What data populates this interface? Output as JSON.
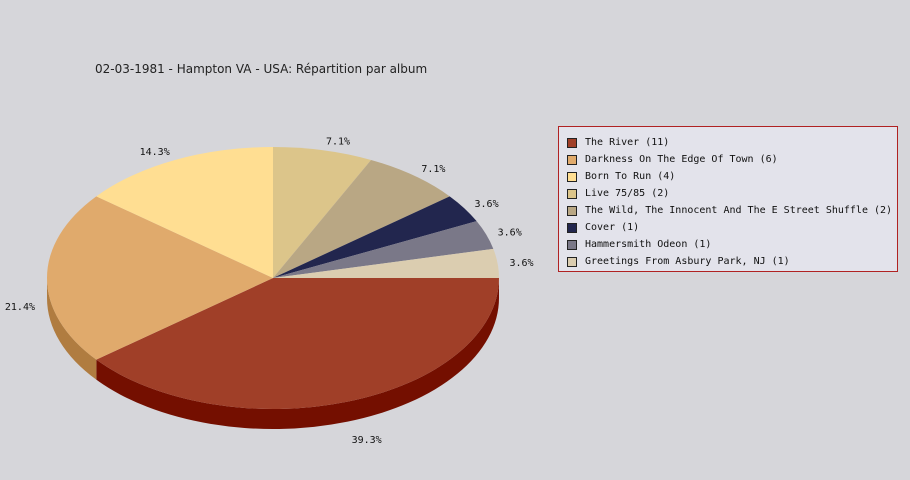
{
  "chart_data": {
    "type": "pie",
    "title": "02-03-1981 - Hampton VA - USA:  Répartition par album",
    "legend_position": "right",
    "slices": [
      {
        "label": "The River",
        "count": 11,
        "legend": "The River (11)",
        "percent_label": "39.3%",
        "color": "#a03f28",
        "side_color": "#740f00"
      },
      {
        "label": "Darkness On The Edge Of Town",
        "count": 6,
        "legend": "Darkness On The Edge Of Town (6)",
        "percent_label": "21.4%",
        "color": "#e0aa6c",
        "side_color": "#b07c40"
      },
      {
        "label": "Born To Run",
        "count": 4,
        "legend": "Born To Run (4)",
        "percent_label": "14.3%",
        "color": "#ffde92",
        "side_color": "#ccaa60"
      },
      {
        "label": "Live 75/85",
        "count": 2,
        "legend": "Live 75/85 (2)",
        "percent_label": "7.1%",
        "color": "#dcc58a",
        "side_color": "#aa9458"
      },
      {
        "label": "The Wild, The Innocent And The E Street Shuffle",
        "count": 2,
        "legend": "The Wild, The Innocent And The E Street Shuffle (2)",
        "percent_label": "7.1%",
        "color": "#b9a784",
        "side_color": "#877652"
      },
      {
        "label": "Cover",
        "count": 1,
        "legend": "Cover (1)",
        "percent_label": "3.6%",
        "color": "#22264e",
        "side_color": "#10122e"
      },
      {
        "label": "Hammersmith Odeon",
        "count": 1,
        "legend": "Hammersmith Odeon  (1)",
        "percent_label": "3.6%",
        "color": "#7a7888",
        "side_color": "#4e4c5a"
      },
      {
        "label": "Greetings From Asbury Park, NJ",
        "count": 1,
        "legend": "Greetings From Asbury Park, NJ (1)",
        "percent_label": "3.6%",
        "color": "#dbcdb0",
        "side_color": "#ab9d80"
      }
    ]
  }
}
